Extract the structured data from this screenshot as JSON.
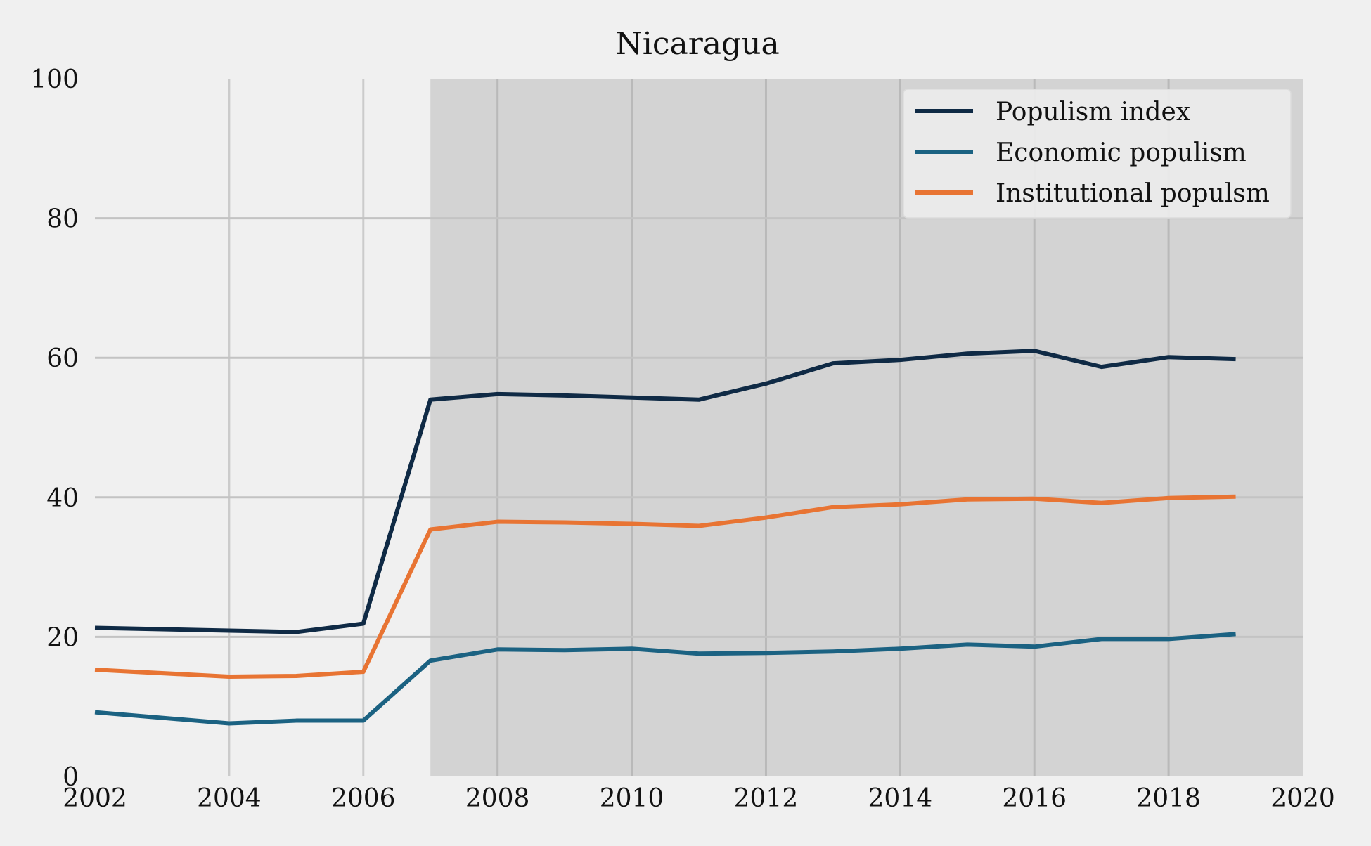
{
  "chart_data": {
    "type": "line",
    "title": "Nicaragua",
    "xlabel": "",
    "ylabel": "",
    "xlim": [
      2002,
      2020
    ],
    "ylim": [
      0,
      100
    ],
    "x_ticks": [
      2002,
      2004,
      2006,
      2008,
      2010,
      2012,
      2014,
      2016,
      2018,
      2020
    ],
    "y_ticks": [
      0,
      20,
      40,
      60,
      80,
      100
    ],
    "grid": true,
    "legend_position": "top-right",
    "shaded_region": {
      "x_start": 2007,
      "x_end": 2020,
      "color": "#d3d3d3"
    },
    "x": [
      2002,
      2004,
      2005,
      2006,
      2007,
      2008,
      2009,
      2010,
      2011,
      2012,
      2013,
      2014,
      2015,
      2016,
      2017,
      2018,
      2019
    ],
    "series": [
      {
        "name": "Populism index",
        "color": "#0f2a45",
        "values": [
          21.3,
          20.9,
          20.7,
          21.9,
          54.0,
          54.8,
          54.6,
          54.3,
          54.0,
          56.3,
          59.2,
          59.7,
          60.6,
          61.0,
          58.7,
          60.1,
          59.8
        ]
      },
      {
        "name": "Economic populism",
        "color": "#1b6282",
        "values": [
          9.2,
          7.6,
          8.0,
          8.0,
          16.6,
          18.2,
          18.1,
          18.3,
          17.6,
          17.7,
          17.9,
          18.3,
          18.9,
          18.6,
          19.7,
          19.7,
          20.4
        ]
      },
      {
        "name": "Institutional populsm",
        "color": "#e87433",
        "values": [
          15.3,
          14.3,
          14.4,
          15.0,
          35.4,
          36.5,
          36.4,
          36.2,
          35.9,
          37.1,
          38.6,
          39.0,
          39.7,
          39.8,
          39.2,
          39.9,
          40.1
        ]
      }
    ]
  }
}
